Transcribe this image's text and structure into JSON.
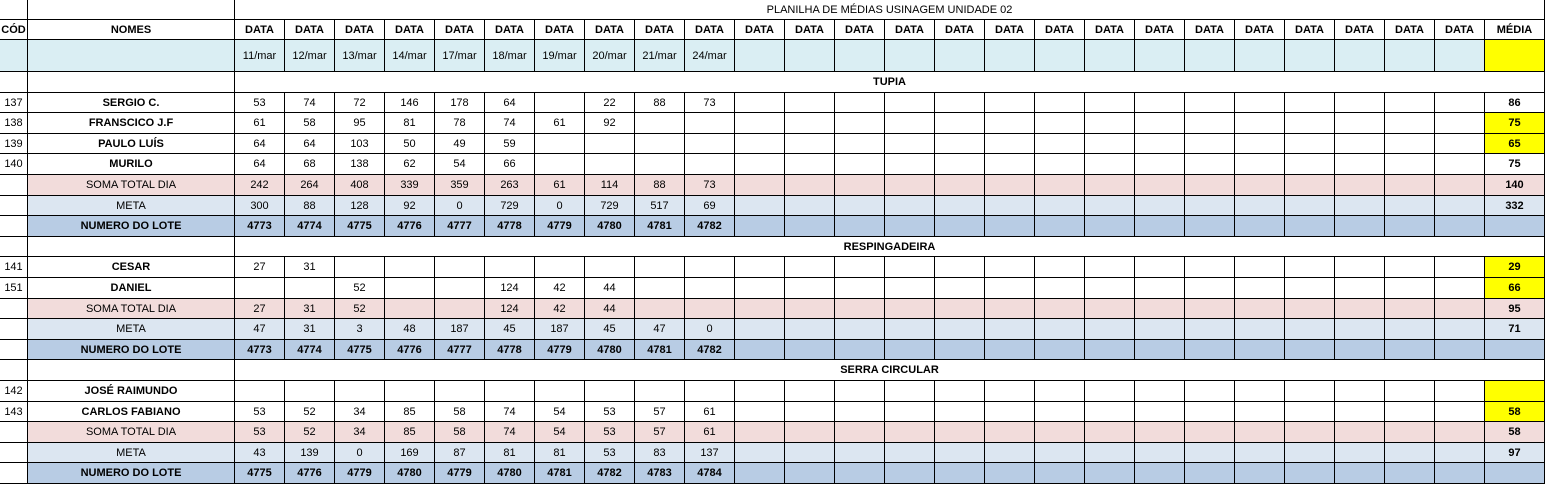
{
  "title": "PLANILHA DE MÉDIAS USINAGEM UNIDADE 02",
  "headers": {
    "cod": "CÓD",
    "nomes": "NOMES",
    "data": "DATA",
    "media": "MÉDIA",
    "dates": [
      "11/mar",
      "12/mar",
      "13/mar",
      "14/mar",
      "17/mar",
      "18/mar",
      "19/mar",
      "20/mar",
      "21/mar",
      "24/mar",
      "",
      "",
      "",
      "",
      "",
      "",
      "",
      "",
      "",
      "",
      "",
      "",
      ""
    ]
  },
  "colors": {
    "yellow": "#ffff00",
    "header_blue": "#daeef3",
    "soma_pink": "#f2dcdb",
    "meta_blue": "#dce6f1",
    "lote_blue": "#b8cce4"
  },
  "rows": [
    {
      "type": "section",
      "label": "TUPIA"
    },
    {
      "type": "person",
      "cod": "137",
      "name": "SERGIO C.",
      "values": [
        "53",
        "74",
        "72",
        "146",
        "178",
        "64",
        "",
        "22",
        "88",
        "73"
      ],
      "media": "86",
      "media_highlight": false
    },
    {
      "type": "person",
      "cod": "138",
      "name": "FRANSCICO J.F",
      "values": [
        "61",
        "58",
        "95",
        "81",
        "78",
        "74",
        "61",
        "92",
        "",
        ""
      ],
      "media": "75",
      "media_highlight": true
    },
    {
      "type": "person",
      "cod": "139",
      "name": "PAULO LUÍS",
      "values": [
        "64",
        "64",
        "103",
        "50",
        "49",
        "59",
        "",
        "",
        "",
        ""
      ],
      "media": "65",
      "media_highlight": true
    },
    {
      "type": "person",
      "cod": "140",
      "name": "MURILO",
      "values": [
        "64",
        "68",
        "138",
        "62",
        "54",
        "66",
        "",
        "",
        "",
        ""
      ],
      "media": "75",
      "media_highlight": false
    },
    {
      "type": "soma",
      "name": "SOMA TOTAL DIA",
      "values": [
        "242",
        "264",
        "408",
        "339",
        "359",
        "263",
        "61",
        "114",
        "88",
        "73"
      ],
      "media": "140"
    },
    {
      "type": "meta",
      "name": "META",
      "values": [
        "300",
        "88",
        "128",
        "92",
        "0",
        "729",
        "0",
        "729",
        "517",
        "69"
      ],
      "media": "332"
    },
    {
      "type": "lote",
      "name": "NUMERO DO LOTE",
      "values": [
        "4773",
        "4774",
        "4775",
        "4776",
        "4777",
        "4778",
        "4779",
        "4780",
        "4781",
        "4782"
      ],
      "media": ""
    },
    {
      "type": "section",
      "label": "RESPINGADEIRA"
    },
    {
      "type": "person",
      "cod": "141",
      "name": "CESAR",
      "values": [
        "27",
        "31",
        "",
        "",
        "",
        "",
        "",
        "",
        "",
        ""
      ],
      "media": "29",
      "media_highlight": true
    },
    {
      "type": "person",
      "cod": "151",
      "name": "DANIEL",
      "values": [
        "",
        "",
        "52",
        "",
        "",
        "124",
        "42",
        "44",
        "",
        ""
      ],
      "media": "66",
      "media_highlight": true
    },
    {
      "type": "soma",
      "name": "SOMA TOTAL DIA",
      "values": [
        "27",
        "31",
        "52",
        "",
        "",
        "124",
        "42",
        "44",
        "",
        ""
      ],
      "media": "95"
    },
    {
      "type": "meta",
      "name": "META",
      "values": [
        "47",
        "31",
        "3",
        "48",
        "187",
        "45",
        "187",
        "45",
        "47",
        "0"
      ],
      "media": "71"
    },
    {
      "type": "lote",
      "name": "NUMERO DO LOTE",
      "values": [
        "4773",
        "4774",
        "4775",
        "4776",
        "4777",
        "4778",
        "4779",
        "4780",
        "4781",
        "4782"
      ],
      "media": ""
    },
    {
      "type": "section",
      "label": "SERRA CIRCULAR"
    },
    {
      "type": "person",
      "cod": "142",
      "name": "JOSÉ RAIMUNDO",
      "values": [
        "",
        "",
        "",
        "",
        "",
        "",
        "",
        "",
        "",
        ""
      ],
      "media": "",
      "media_highlight": true
    },
    {
      "type": "person",
      "cod": "143",
      "name": "CARLOS FABIANO",
      "values": [
        "53",
        "52",
        "34",
        "85",
        "58",
        "74",
        "54",
        "53",
        "57",
        "61"
      ],
      "media": "58",
      "media_highlight": true
    },
    {
      "type": "soma",
      "name": "SOMA TOTAL DIA",
      "values": [
        "53",
        "52",
        "34",
        "85",
        "58",
        "74",
        "54",
        "53",
        "57",
        "61"
      ],
      "media": "58"
    },
    {
      "type": "meta",
      "name": "META",
      "values": [
        "43",
        "139",
        "0",
        "169",
        "87",
        "81",
        "81",
        "53",
        "83",
        "137"
      ],
      "media": "97"
    },
    {
      "type": "lote",
      "name": "NUMERO DO LOTE",
      "values": [
        "4775",
        "4776",
        "4779",
        "4780",
        "4779",
        "4780",
        "4781",
        "4782",
        "4783",
        "4784"
      ],
      "media": ""
    }
  ]
}
